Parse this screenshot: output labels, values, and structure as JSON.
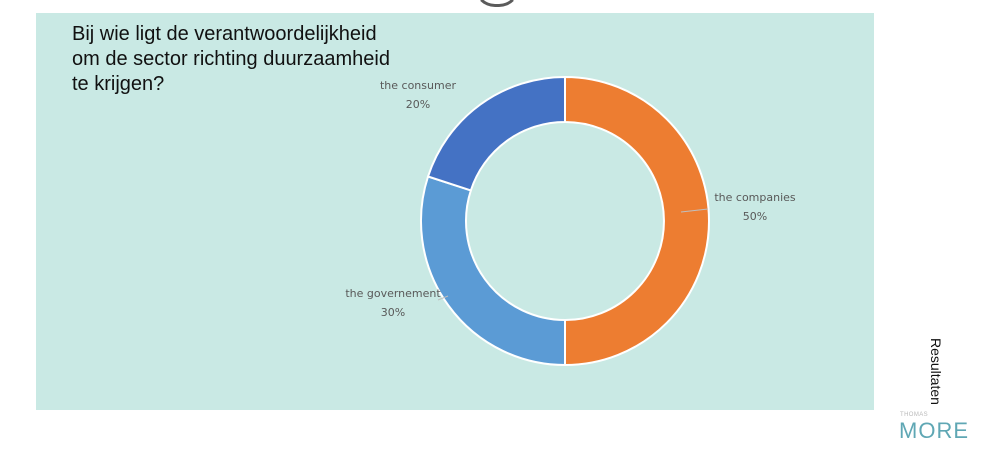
{
  "panel": {
    "background": "#c9e9e4"
  },
  "chart_data": {
    "type": "pie",
    "variant": "donut",
    "title": "Bij wie ligt de verantwoordelijkheid\nom de sector richting duurzaamheid\nte krijgen?",
    "labels": [
      "the companies",
      "the governement",
      "the consumer"
    ],
    "values": [
      50,
      30,
      20
    ],
    "value_labels": [
      "50%",
      "30%",
      "20%"
    ],
    "colors": [
      "#ed7d31",
      "#5b9bd5",
      "#4472c4"
    ],
    "legend": false,
    "label_color": "#595959"
  },
  "sidebar": {
    "label": "Resultaten"
  },
  "logo": {
    "small": "THOMAS",
    "main": "MORE"
  }
}
